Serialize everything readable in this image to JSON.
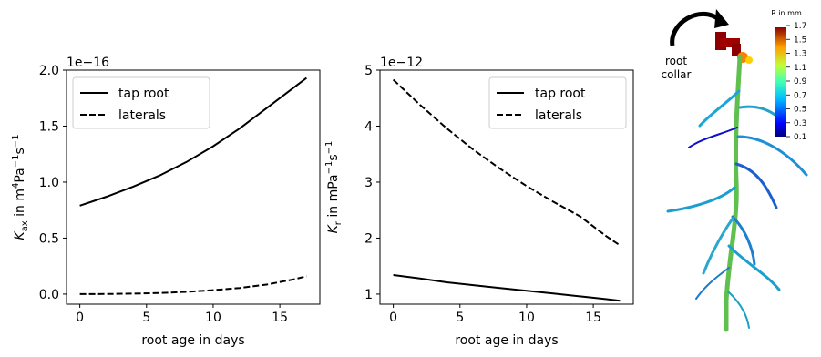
{
  "chart_data": [
    {
      "type": "line",
      "xlabel": "root age in days",
      "ylabel_main": "K",
      "ylabel_sub": "ax",
      "ylabel_unit": " in m",
      "ylabel_unit_sup": "4",
      "ylabel_unit2": "Pa",
      "ylabel_unit2_sup": "−1",
      "ylabel_unit3": "s",
      "ylabel_unit3_sup": "−1",
      "offset_text": "1e−16",
      "xlim": [
        -1,
        18
      ],
      "ylim": [
        -0.09,
        2.0
      ],
      "xticks": [
        0,
        5,
        10,
        15
      ],
      "yticks": [
        0.0,
        0.5,
        1.0,
        1.5,
        2.0
      ],
      "ytick_labels": [
        "0.0",
        "0.5",
        "1.0",
        "1.5",
        "2.0"
      ],
      "legend_position": "upper-left",
      "series": [
        {
          "name": "tap root",
          "style": "solid",
          "x": [
            0,
            2,
            4,
            6,
            8,
            10,
            12,
            14,
            16,
            17
          ],
          "y": [
            0.79,
            0.87,
            0.96,
            1.06,
            1.18,
            1.32,
            1.48,
            1.66,
            1.84,
            1.93
          ]
        },
        {
          "name": "laterals",
          "style": "dashed",
          "x": [
            0,
            2,
            4,
            6,
            8,
            10,
            12,
            14,
            16,
            17
          ],
          "y": [
            0.0,
            0.001,
            0.004,
            0.01,
            0.02,
            0.035,
            0.055,
            0.085,
            0.13,
            0.16
          ]
        }
      ]
    },
    {
      "type": "line",
      "xlabel": "root age in days",
      "ylabel_main": "K",
      "ylabel_sub": "r",
      "ylabel_unit": " in mPa",
      "ylabel_unit_sup": "−1",
      "ylabel_unit2": "s",
      "ylabel_unit2_sup": "−1",
      "offset_text": "1e−12",
      "xlim": [
        -1,
        18
      ],
      "ylim": [
        0.82,
        5.0
      ],
      "xticks": [
        0,
        5,
        10,
        15
      ],
      "yticks": [
        1,
        2,
        3,
        4,
        5
      ],
      "ytick_labels": [
        "1",
        "2",
        "3",
        "4",
        "5"
      ],
      "legend_position": "upper-right",
      "series": [
        {
          "name": "tap root",
          "style": "solid",
          "x": [
            0,
            2,
            4,
            6,
            8,
            10,
            12,
            14,
            16,
            17
          ],
          "y": [
            1.34,
            1.28,
            1.21,
            1.16,
            1.11,
            1.06,
            1.01,
            0.96,
            0.91,
            0.88
          ]
        },
        {
          "name": "laterals",
          "style": "dashed",
          "x": [
            0,
            2,
            4,
            6,
            8,
            10,
            12,
            14,
            16,
            17
          ],
          "y": [
            4.83,
            4.38,
            3.96,
            3.58,
            3.24,
            2.93,
            2.65,
            2.39,
            2.03,
            1.87
          ]
        }
      ]
    }
  ],
  "root_image": {
    "annotation": "root\ncollar",
    "colorbar_title": "R in mm",
    "colorbar_ticks": [
      "1.7",
      "1.5",
      "1.3",
      "1.1",
      "0.9",
      "0.7",
      "0.5",
      "0.3",
      "0.1"
    ]
  }
}
